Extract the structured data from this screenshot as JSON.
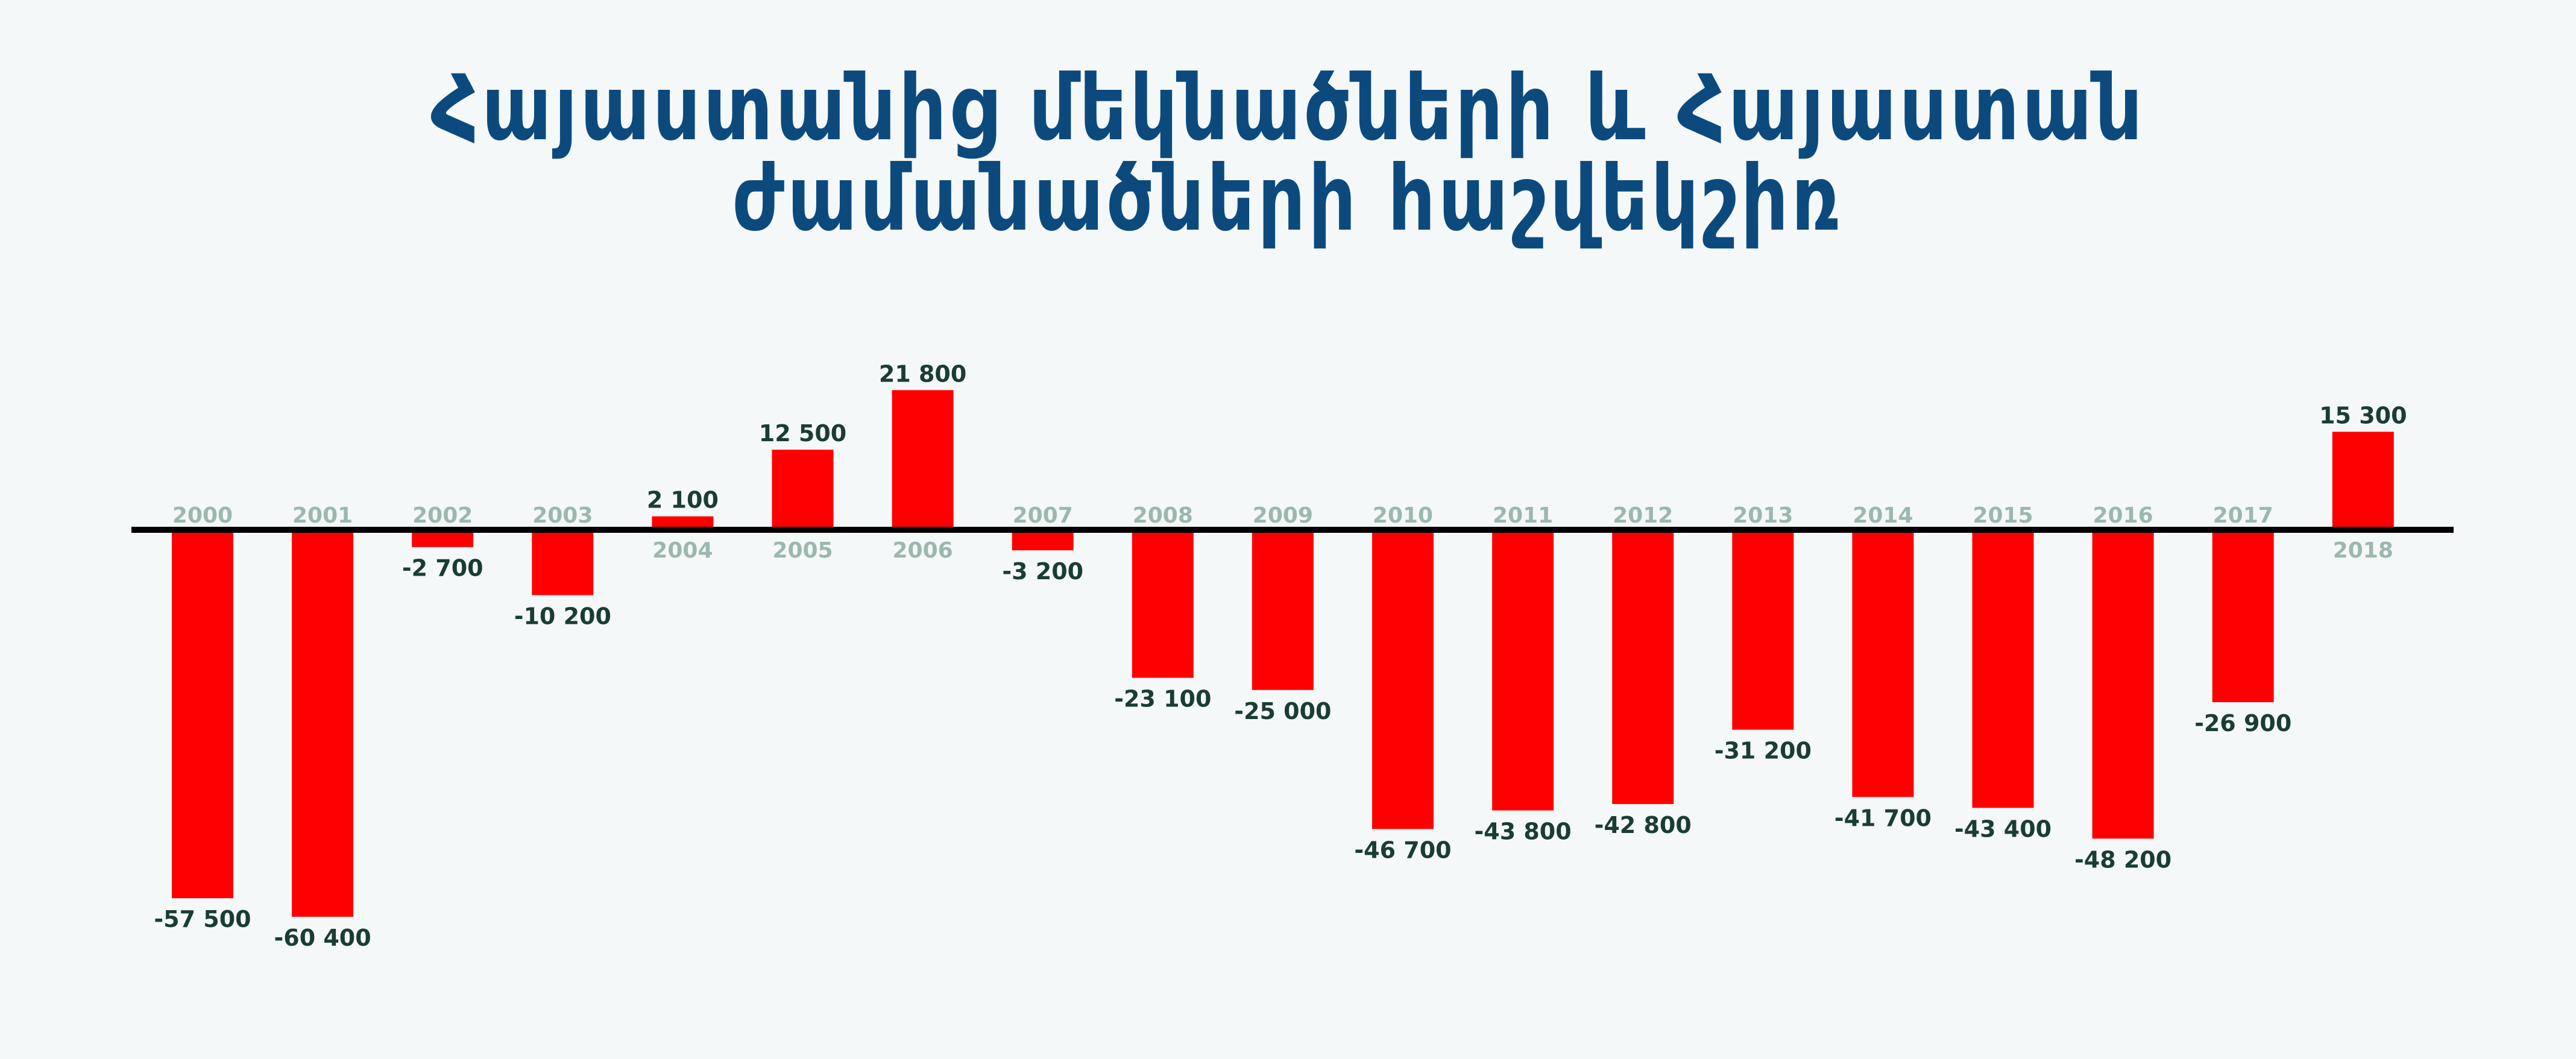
{
  "colors": {
    "background": "#f4f8f8",
    "title": "#0c4a7e",
    "bar": "#ff0000",
    "axis": "#000000",
    "year_label": "#9cb8ae",
    "value_label": "#1a3d33"
  },
  "chart_data": {
    "type": "bar",
    "title": "Հայաստանից մեկնածների և Հայաստան ժամանածների հաշվեկշիռ",
    "categories": [
      "2000",
      "2001",
      "2002",
      "2003",
      "2004",
      "2005",
      "2006",
      "2007",
      "2008",
      "2009",
      "2010",
      "2011",
      "2012",
      "2013",
      "2014",
      "2015",
      "2016",
      "2017",
      "2018"
    ],
    "values": [
      -57500,
      -60400,
      -2700,
      -10200,
      2100,
      12500,
      21800,
      -3200,
      -23100,
      -25000,
      -46700,
      -43800,
      -42800,
      -31200,
      -41700,
      -43400,
      -48200,
      -26900,
      15300
    ],
    "value_labels": [
      "-57 500",
      "-60 400",
      "-2 700",
      "-10 200",
      "2 100",
      "12 500",
      "21 800",
      "-3 200",
      "-23 100",
      "-25 000",
      "-46 700",
      "-43 800",
      "-42 800",
      "-31 200",
      "-41 700",
      "-43 400",
      "-48 200",
      "-26 900",
      "15 300"
    ],
    "xlabel": "",
    "ylabel": "",
    "grid": false,
    "legend": "none"
  }
}
